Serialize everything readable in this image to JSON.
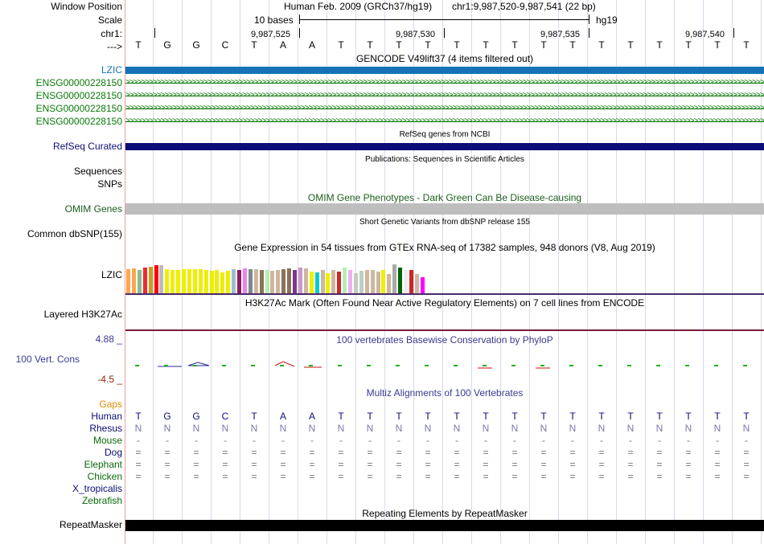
{
  "sidebar": {
    "window_position": "Window Position",
    "scale": "Scale",
    "chr": "chr1:",
    "arrow": "--->",
    "lzic_gencode": "LZIC",
    "ensg": [
      "ENSG00000228150",
      "ENSG00000228150",
      "ENSG00000228150",
      "ENSG00000228150"
    ],
    "refseq": "RefSeq Curated",
    "sequences": "Sequences",
    "snps": "SNPs",
    "omim": "OMIM Genes",
    "dbsnp": "Common dbSNP(155)",
    "lzic_gtex": "LZIC",
    "h3k27ac": "Layered H3K27Ac",
    "cons_max": "4.88 _",
    "cons_label": "100 Vert. Cons",
    "cons_min": "-4.5 _",
    "gaps": "Gaps",
    "species": [
      "Human",
      "Rhesus",
      "Mouse",
      "Dog",
      "Elephant",
      "Chicken",
      "X_tropicalis",
      "Zebrafish"
    ],
    "repeatmasker": "RepeatMasker"
  },
  "header": {
    "assembly": "Human Feb. 2009 (GRCh37/hg19)",
    "position": "chr1:9,987,520-9,987,541 (22 bp)",
    "scale_text": "10 bases",
    "scale_db": "hg19",
    "coords": [
      "9,987,525",
      "9,987,530",
      "9,987,535",
      "9,987,540"
    ]
  },
  "sequence": [
    "T",
    "G",
    "G",
    "C",
    "T",
    "A",
    "A",
    "T",
    "T",
    "T",
    "T",
    "T",
    "T",
    "T",
    "T",
    "T",
    "T",
    "T",
    "T",
    "T",
    "T",
    "T"
  ],
  "rhesus": [
    "N",
    "N",
    "N",
    "N",
    "N",
    "N",
    "N",
    "N",
    "N",
    "N",
    "N",
    "N",
    "N",
    "N",
    "N",
    "N",
    "N",
    "N",
    "N",
    "N",
    "N",
    "N"
  ],
  "mouse": [
    "-",
    "-",
    "-",
    "-",
    "-",
    "-",
    "-",
    "-",
    "-",
    "-",
    "-",
    "-",
    "-",
    "-",
    "-",
    "-",
    "-",
    "-",
    "-",
    "-",
    "-",
    "-"
  ],
  "dog": [
    "=",
    "=",
    "=",
    "=",
    "=",
    "=",
    "=",
    "=",
    "=",
    "=",
    "=",
    "=",
    "=",
    "=",
    "=",
    "=",
    "=",
    "=",
    "=",
    "=",
    "=",
    "="
  ],
  "elephant": [
    "=",
    "=",
    "=",
    "=",
    "=",
    "=",
    "=",
    "=",
    "=",
    "=",
    "=",
    "=",
    "=",
    "=",
    "=",
    "=",
    "=",
    "=",
    "=",
    "=",
    "=",
    "="
  ],
  "chicken": [
    "=",
    "=",
    "=",
    "=",
    "=",
    "=",
    "=",
    "=",
    "=",
    "=",
    "=",
    "=",
    "=",
    "=",
    "=",
    "=",
    "=",
    "=",
    "=",
    "=",
    "=",
    "="
  ],
  "tracks": {
    "gencode": "GENCODE V49lift37 (4 items filtered out)",
    "refseq": "RefSeq genes from NCBI",
    "publications": "Publications: Sequences in Scientific Articles",
    "omim": "OMIM Gene Phenotypes - Dark Green Can Be Disease-causing",
    "dbsnp": "Short Genetic Variants from dbSNP release 155",
    "gtex": "Gene Expression in 54 tissues from GTEx RNA-seq of 17382 samples, 948 donors (V8, Aug 2019)",
    "h3k27ac": "H3K27Ac Mark (Often Found Near Active Regulatory Elements) on 7 cell lines from ENCODE",
    "phylop": "100 vertebrates Basewise Conservation by PhyloP",
    "multiz": "Multiz Alignments of 100 Vertebrates",
    "repeats": "Repeating Elements by RepeatMasker"
  },
  "colors": {
    "gencode_blue": "#1473b4",
    "ensg_green": "#0a7a0a",
    "refseq_navy": "#0c0c78",
    "omim_gray": "#bebebe",
    "omim_text": "#1b5e1b",
    "phylop_text": "#3a3a90",
    "gaps": "#e08a00",
    "cons_max": "#3a3a90",
    "cons_min": "#8b2a0a",
    "h3k_line": "#7a1a3a"
  },
  "gtex": {
    "heights": [
      0.83,
      0.85,
      0.8,
      0.9,
      0.93,
      0.98,
      0.96,
      0.83,
      0.8,
      0.8,
      0.82,
      0.83,
      0.82,
      0.84,
      0.8,
      0.78,
      0.8,
      0.72,
      0.78,
      0.82,
      0.8,
      0.85,
      0.84,
      0.83,
      0.8,
      0.8,
      0.77,
      0.8,
      0.82,
      0.86,
      0.8,
      0.9,
      0.85,
      0.74,
      0.72,
      0.8,
      0.7,
      0.8,
      0.75,
      0.9,
      0.8,
      0.7,
      0.78,
      0.8,
      0.8,
      0.74,
      0.8,
      0.68,
      1.0,
      0.88,
      0.8,
      0.8,
      0.68,
      0.55
    ],
    "colors": [
      "#ffa54f",
      "#ffa54f",
      "#8fbc8f",
      "#ee2c2c",
      "#cd9b1d",
      "#ff0000",
      "#bbbbbb",
      "#eeee00",
      "#eeee00",
      "#eeee00",
      "#eeee00",
      "#eeee00",
      "#eeee00",
      "#eeee00",
      "#eeee00",
      "#eeee00",
      "#eeee00",
      "#eeee00",
      "#eeee00",
      "#9ac0cd",
      "#8b1c62",
      "#ee82ee",
      "#7a8b8b",
      "#cdb79e",
      "#8b7355",
      "#b4eeb4",
      "#cdb79e",
      "#cdb79e",
      "#8b7355",
      "#8b7355",
      "#7a378b",
      "#cd96cd",
      "#cdb79e",
      "#eeee00",
      "#00cdcd",
      "#cdb79e",
      "#eeee00",
      "#cdb79e",
      "#cd2626",
      "#b4eeb4",
      "#eeaeee",
      "#c1cdc1",
      "#c1cdc1",
      "#cdb79e",
      "#cdb79e",
      "#cdb79e",
      "#eeee00",
      "#cdb79e",
      "#aaaaaa",
      "#006400",
      "#eeeeee",
      "#cd2626",
      "#cdb79e",
      "#ff00ff"
    ]
  }
}
